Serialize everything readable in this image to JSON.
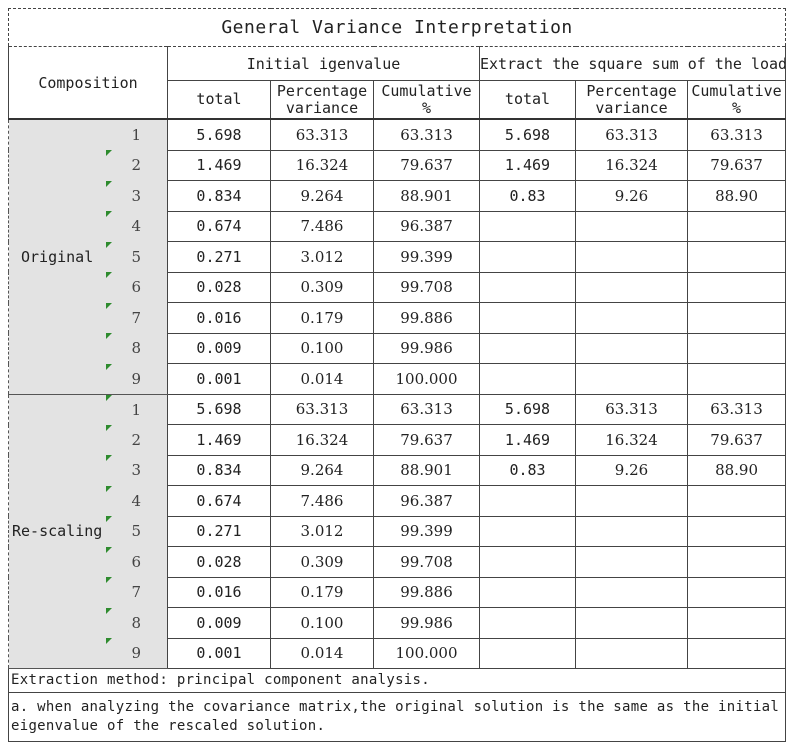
{
  "title": "General Variance Interpretation",
  "header": {
    "composition": "Composition",
    "initial_group": "Initial igenvalue",
    "extract_group": "Extract the square sum of the load",
    "col_total": "total",
    "col_percentage_line1": "Percentage",
    "col_percentage_line2": "variance",
    "col_cumulative_line1": "Cumulative",
    "col_cumulative_line2": "%"
  },
  "groups": [
    {
      "label": "Original",
      "rows": [
        {
          "n": "1",
          "total": "5.698",
          "pct": "63.313",
          "cum": "63.313",
          "e_total": "5.698",
          "e_pct": "63.313",
          "e_cum": "63.313"
        },
        {
          "n": "2",
          "total": "1.469",
          "pct": "16.324",
          "cum": "79.637",
          "e_total": "1.469",
          "e_pct": "16.324",
          "e_cum": "79.637"
        },
        {
          "n": "3",
          "total": "0.834",
          "pct": "9.264",
          "cum": "88.901",
          "e_total": "0.83",
          "e_pct": "9.26",
          "e_cum": "88.90"
        },
        {
          "n": "4",
          "total": "0.674",
          "pct": "7.486",
          "cum": "96.387",
          "e_total": "",
          "e_pct": "",
          "e_cum": ""
        },
        {
          "n": "5",
          "total": "0.271",
          "pct": "3.012",
          "cum": "99.399",
          "e_total": "",
          "e_pct": "",
          "e_cum": ""
        },
        {
          "n": "6",
          "total": "0.028",
          "pct": "0.309",
          "cum": "99.708",
          "e_total": "",
          "e_pct": "",
          "e_cum": ""
        },
        {
          "n": "7",
          "total": "0.016",
          "pct": "0.179",
          "cum": "99.886",
          "e_total": "",
          "e_pct": "",
          "e_cum": ""
        },
        {
          "n": "8",
          "total": "0.009",
          "pct": "0.100",
          "cum": "99.986",
          "e_total": "",
          "e_pct": "",
          "e_cum": ""
        },
        {
          "n": "9",
          "total": "0.001",
          "pct": "0.014",
          "cum": "100.000",
          "e_total": "",
          "e_pct": "",
          "e_cum": ""
        }
      ]
    },
    {
      "label": "Re-scaling",
      "rows": [
        {
          "n": "1",
          "total": "5.698",
          "pct": "63.313",
          "cum": "63.313",
          "e_total": "5.698",
          "e_pct": "63.313",
          "e_cum": "63.313"
        },
        {
          "n": "2",
          "total": "1.469",
          "pct": "16.324",
          "cum": "79.637",
          "e_total": "1.469",
          "e_pct": "16.324",
          "e_cum": "79.637"
        },
        {
          "n": "3",
          "total": "0.834",
          "pct": "9.264",
          "cum": "88.901",
          "e_total": "0.83",
          "e_pct": "9.26",
          "e_cum": "88.90"
        },
        {
          "n": "4",
          "total": "0.674",
          "pct": "7.486",
          "cum": "96.387",
          "e_total": "",
          "e_pct": "",
          "e_cum": ""
        },
        {
          "n": "5",
          "total": "0.271",
          "pct": "3.012",
          "cum": "99.399",
          "e_total": "",
          "e_pct": "",
          "e_cum": ""
        },
        {
          "n": "6",
          "total": "0.028",
          "pct": "0.309",
          "cum": "99.708",
          "e_total": "",
          "e_pct": "",
          "e_cum": ""
        },
        {
          "n": "7",
          "total": "0.016",
          "pct": "0.179",
          "cum": "99.886",
          "e_total": "",
          "e_pct": "",
          "e_cum": ""
        },
        {
          "n": "8",
          "total": "0.009",
          "pct": "0.100",
          "cum": "99.986",
          "e_total": "",
          "e_pct": "",
          "e_cum": ""
        },
        {
          "n": "9",
          "total": "0.001",
          "pct": "0.014",
          "cum": "100.000",
          "e_total": "",
          "e_pct": "",
          "e_cum": ""
        }
      ]
    }
  ],
  "footnotes": {
    "method": "Extraction method: principal component analysis.",
    "note_a": "a. when analyzing the covariance matrix,the original solution is the same as the initial eigenvalue of the rescaled solution."
  },
  "colors": {
    "label_background": "#e3e3e3",
    "marker_green": "#2e8b2e",
    "border": "#444444"
  }
}
